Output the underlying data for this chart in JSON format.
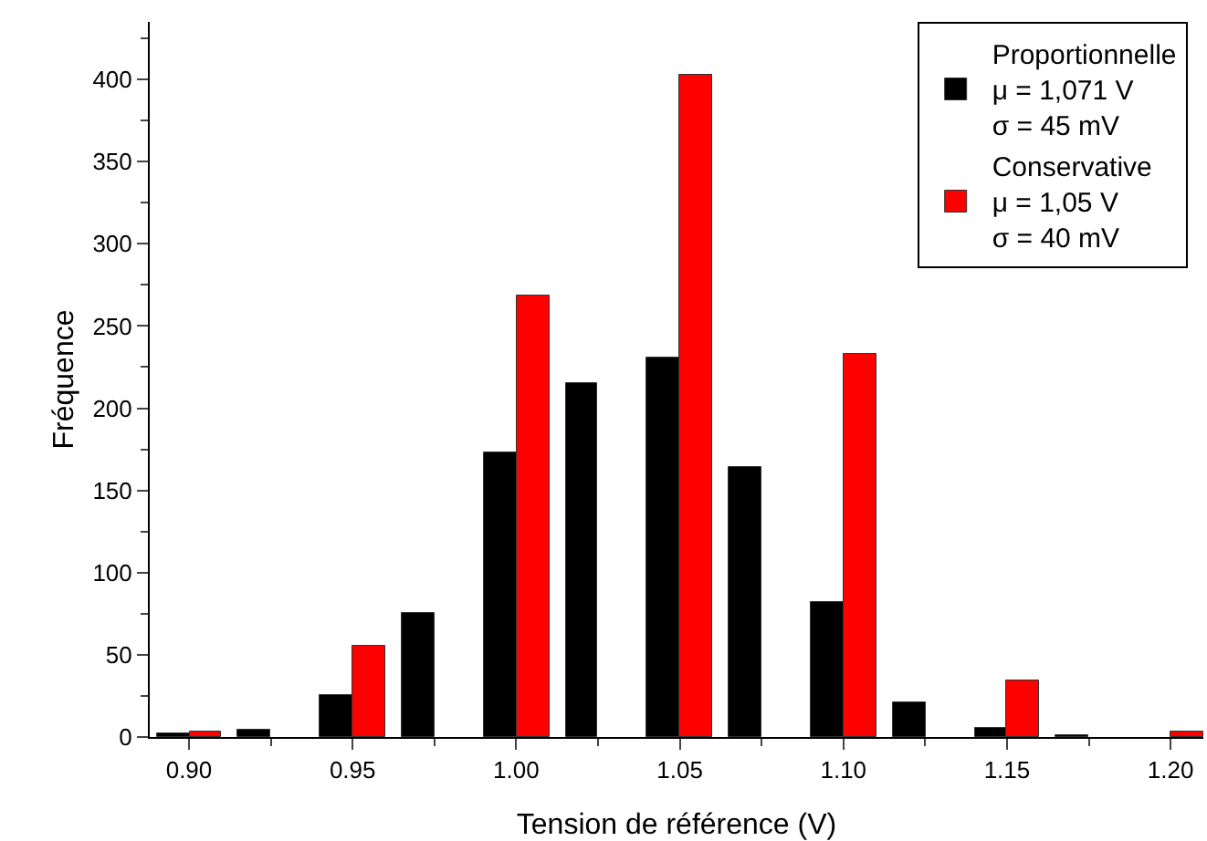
{
  "chart_data": {
    "type": "bar",
    "xlabel": "Tension de référence (V)",
    "ylabel": "Fréquence",
    "xlim": [
      0.888,
      1.21
    ],
    "xticks": [
      {
        "value": 0.9,
        "label": "0.90"
      },
      {
        "value": 0.95,
        "label": "0.95"
      },
      {
        "value": 1.0,
        "label": "1.00"
      },
      {
        "value": 1.05,
        "label": "1.05"
      },
      {
        "value": 1.1,
        "label": "1.10"
      },
      {
        "value": 1.15,
        "label": "1.15"
      },
      {
        "value": 1.2,
        "label": "1.20"
      }
    ],
    "ylim": [
      0,
      435
    ],
    "yticks": [
      0,
      50,
      100,
      150,
      200,
      250,
      300,
      350,
      400
    ],
    "grid": false,
    "legend": "top right",
    "series": [
      {
        "name": "Proportionnelle\nμ = 1,071 V\nσ = 45 mV",
        "color": "#000000",
        "x": [
          0.895,
          0.92,
          0.945,
          0.97,
          0.995,
          1.02,
          1.045,
          1.07,
          1.095,
          1.12,
          1.145,
          1.17
        ],
        "values": [
          2,
          4,
          25,
          76,
          173,
          215,
          231,
          164,
          82,
          21,
          6,
          1
        ]
      },
      {
        "name": "Conservative\nμ = 1,05 V\nσ = 40 mV",
        "color": "#ff0000",
        "x": [
          0.905,
          0.955,
          1.005,
          1.055,
          1.105,
          1.155,
          1.205
        ],
        "values": [
          3,
          55,
          268,
          403,
          233,
          34,
          3
        ]
      }
    ]
  }
}
